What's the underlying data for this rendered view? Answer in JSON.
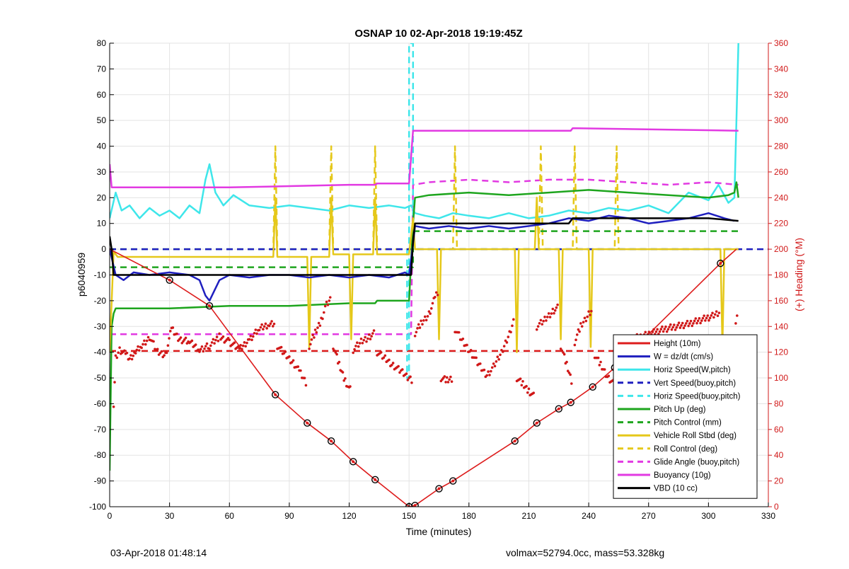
{
  "colors": {
    "height_red": "#dd1c1c",
    "w_blue": "#1f1fbf",
    "cyan": "#3ee6ea",
    "green": "#1ea51e",
    "yellow": "#e5c81a",
    "magenta": "#e23ae2",
    "black": "#000000",
    "right_axis_red": "#d01818",
    "grid": "#e3e3e3"
  },
  "chart_data": {
    "type": "line",
    "title": "OSNAP 10 02-Apr-2018 19:19:45Z",
    "xlabel": "Time (minutes)",
    "ylabel": "p6040959",
    "ylabel_right": "(+) Heading (°M)",
    "xlim": [
      0,
      330
    ],
    "ylim": [
      -100,
      80
    ],
    "ylim_right": [
      0,
      360
    ],
    "x_ticks": [
      0,
      30,
      60,
      90,
      120,
      150,
      180,
      210,
      240,
      270,
      300,
      330
    ],
    "y_ticks": [
      -100,
      -90,
      -80,
      -70,
      -60,
      -50,
      -40,
      -30,
      -20,
      -10,
      0,
      10,
      20,
      30,
      40,
      50,
      60,
      70,
      80
    ],
    "y_ticks_right": [
      0,
      20,
      40,
      60,
      80,
      100,
      120,
      140,
      160,
      180,
      200,
      220,
      240,
      260,
      280,
      300,
      320,
      340,
      360
    ],
    "grid": true,
    "legend_position": "bottom-right",
    "series": [
      {
        "name": "Height (10m)",
        "key": "height",
        "style": "solid-dots",
        "color": "#dd1c1c",
        "x": [
          0,
          30,
          50,
          83,
          99,
          111,
          122,
          133,
          150,
          153,
          165,
          172,
          203,
          214,
          225,
          231,
          242,
          253,
          306,
          314
        ],
        "values": [
          0,
          -12,
          -22,
          -56.5,
          -67.5,
          -74.5,
          -82.5,
          -89.5,
          -100,
          -99.5,
          -93,
          -90,
          -74.5,
          -67.5,
          -62,
          -59.5,
          -53.5,
          -46,
          -5.5,
          0
        ]
      },
      {
        "name": "W = dz/dt (cm/s)",
        "key": "w",
        "style": "solid",
        "color": "#1f1fbf",
        "x": [
          0,
          3,
          7,
          12,
          20,
          30,
          40,
          45,
          48,
          50,
          55,
          60,
          70,
          80,
          90,
          100,
          110,
          120,
          130,
          140,
          148,
          150,
          152,
          153,
          160,
          170,
          180,
          190,
          200,
          210,
          220,
          230,
          240,
          250,
          260,
          270,
          280,
          290,
          300,
          308,
          313
        ],
        "values": [
          0,
          -10,
          -12,
          -9,
          -10,
          -9,
          -10,
          -12,
          -18,
          -20,
          -12,
          -10,
          -11,
          -10,
          -10,
          -11,
          -10,
          -11,
          -10,
          -11,
          -9,
          -10,
          2,
          9,
          8,
          9,
          8,
          9,
          8,
          9,
          10,
          12,
          11,
          13,
          12,
          10,
          11,
          12,
          14,
          12,
          11
        ]
      },
      {
        "name": "Horiz Speed(W,pitch)",
        "key": "hspeed",
        "style": "solid",
        "color": "#3ee6ea",
        "x": [
          0,
          3,
          6,
          10,
          15,
          20,
          25,
          30,
          35,
          40,
          45,
          48,
          50,
          53,
          57,
          62,
          70,
          80,
          90,
          100,
          110,
          120,
          130,
          140,
          148,
          151,
          153,
          158,
          165,
          172,
          180,
          190,
          200,
          210,
          220,
          230,
          240,
          250,
          260,
          270,
          280,
          290,
          300,
          305,
          310,
          313,
          314,
          315
        ],
        "values": [
          12,
          22,
          15,
          17,
          12,
          16,
          13,
          15,
          12,
          17,
          14,
          27,
          33,
          22,
          17,
          21,
          17,
          16,
          17,
          16,
          15,
          17,
          16,
          17,
          16,
          17,
          14,
          13,
          12,
          14,
          13,
          12,
          14,
          12,
          13,
          15,
          14,
          16,
          15,
          17,
          14,
          22,
          19,
          25,
          18,
          20,
          50,
          80
        ]
      },
      {
        "name": "Vert Speed(buoy,pitch)",
        "key": "vspeed",
        "style": "dashed",
        "color": "#1f1fbf",
        "x": [
          0,
          330
        ],
        "values": [
          0,
          0
        ]
      },
      {
        "name": "Horiz Speed(buoy,pitch)",
        "key": "hspeedb",
        "style": "dashed",
        "color": "#3ee6ea",
        "x": [
          0,
          149,
          149,
          150,
          150,
          152,
          152,
          315
        ],
        "values": [
          0,
          0,
          -50,
          -50,
          80,
          80,
          0,
          0
        ]
      },
      {
        "name": "Pitch Up (deg)",
        "key": "pitch",
        "style": "solid",
        "color": "#1ea51e",
        "x": [
          0,
          1,
          2,
          3,
          10,
          30,
          60,
          90,
          120,
          133,
          134,
          150,
          152,
          153,
          160,
          180,
          200,
          220,
          240,
          260,
          280,
          300,
          310,
          313,
          314,
          315
        ],
        "values": [
          -86,
          -30,
          -25,
          -23,
          -23,
          -23,
          -22,
          -22,
          -21,
          -21,
          -20,
          -20,
          10,
          20,
          21,
          22,
          21,
          22,
          23,
          22,
          21,
          20,
          21,
          22,
          26,
          20
        ]
      },
      {
        "name": "Pitch Control (mm)",
        "key": "pitchctl",
        "style": "dashed",
        "color": "#1ea51e",
        "x": [
          0,
          152,
          152,
          315
        ],
        "values": [
          -7,
          -7,
          7,
          7
        ]
      },
      {
        "name": "Vehicle Roll Stbd (deg)",
        "key": "roll",
        "style": "solid",
        "color": "#e5c81a",
        "x": [
          0,
          2,
          4,
          30,
          60,
          82,
          83,
          84,
          99,
          100,
          101,
          110,
          111,
          112,
          120,
          121,
          122,
          132,
          133,
          134,
          150,
          152,
          153,
          164,
          165,
          166,
          190,
          203,
          204,
          205,
          213,
          214,
          215,
          225,
          226,
          227,
          240,
          241,
          242,
          253,
          306,
          307,
          308,
          314,
          315
        ],
        "values": [
          -40,
          -1,
          -3,
          -3,
          -3,
          -3,
          20,
          -3,
          -3,
          -38,
          -3,
          -3,
          20,
          -2,
          -2,
          -35,
          -2,
          -2,
          20,
          -2,
          -2,
          12,
          0,
          0,
          -35,
          0,
          0,
          0,
          -40,
          0,
          0,
          20,
          0,
          0,
          -35,
          0,
          0,
          -38,
          0,
          0,
          0,
          -38,
          0,
          0,
          0
        ]
      },
      {
        "name": "Roll Control (deg)",
        "key": "rollctl",
        "style": "dashed",
        "color": "#e5c81a",
        "x": [
          0,
          82,
          83,
          84,
          110,
          111,
          112,
          132,
          133,
          134,
          150,
          151,
          152,
          172,
          173,
          174,
          215,
          216,
          217,
          232,
          233,
          234,
          253,
          254,
          255,
          315
        ],
        "values": [
          0,
          0,
          40,
          0,
          0,
          40,
          0,
          0,
          40,
          0,
          0,
          0,
          0,
          0,
          40,
          0,
          0,
          40,
          0,
          0,
          40,
          0,
          0,
          40,
          0,
          0
        ]
      },
      {
        "name": "Glide Angle (buoy,pitch)",
        "key": "glide",
        "style": "dashed",
        "color": "#e23ae2",
        "x": [
          0,
          60,
          100,
          150,
          151,
          152,
          160,
          180,
          200,
          220,
          240,
          260,
          280,
          300,
          315
        ],
        "values": [
          -33,
          -33,
          -33,
          -33,
          -33,
          25,
          26,
          27,
          26,
          27,
          27,
          26,
          25,
          26,
          25
        ]
      },
      {
        "name": "Buoyancy (10g)",
        "key": "buoy",
        "style": "solid",
        "color": "#e23ae2",
        "x": [
          0,
          1,
          2,
          3,
          30,
          60,
          90,
          120,
          133,
          134,
          150,
          152,
          153,
          231,
          232,
          315
        ],
        "values": [
          33,
          24,
          24,
          24,
          24,
          24,
          24.5,
          25,
          25,
          25.5,
          25.5,
          46,
          46,
          46,
          47,
          46
        ]
      },
      {
        "name": "VBD (10 cc)",
        "key": "vbd",
        "style": "solid",
        "color": "#000000",
        "x": [
          0,
          1,
          2,
          3,
          150,
          151,
          152,
          153,
          160,
          180,
          200,
          230,
          231,
          232,
          260,
          300,
          315
        ],
        "values": [
          5,
          0,
          -10,
          -10,
          -10,
          -10,
          3,
          10,
          10,
          10,
          10,
          10,
          11,
          12,
          12,
          12,
          11
        ]
      }
    ],
    "heading_target": 121,
    "heading_right_axis": {
      "name": "Heading (°M)",
      "key": "heading",
      "color": "#d01818",
      "segments": [
        {
          "x": [
            2,
            3,
            5,
            8,
            10,
            13,
            16,
            20,
            24,
            28,
            31,
            35,
            40,
            45,
            50,
            55,
            60,
            65,
            70,
            75,
            80,
            83
          ],
          "values": [
            80,
            115,
            122,
            118,
            115,
            120,
            125,
            132,
            120,
            118,
            138,
            130,
            128,
            122,
            125,
            132,
            128,
            122,
            130,
            138,
            142,
            143
          ]
        },
        {
          "x": [
            84,
            88,
            92,
            95,
            97,
            99
          ],
          "values": [
            125,
            118,
            112,
            105,
            100,
            95
          ]
        },
        {
          "x": [
            100,
            103,
            106,
            108,
            110,
            111
          ],
          "values": [
            125,
            135,
            145,
            155,
            160,
            162
          ]
        },
        {
          "x": [
            112,
            115,
            118,
            120,
            121
          ],
          "values": [
            125,
            110,
            98,
            92,
            90
          ]
        },
        {
          "x": [
            122,
            126,
            130,
            133
          ],
          "values": [
            122,
            128,
            132,
            135
          ]
        },
        {
          "x": [
            134,
            138,
            142,
            146,
            150,
            152
          ],
          "values": [
            120,
            115,
            110,
            105,
            100,
            98
          ]
        },
        {
          "x": [
            153,
            156,
            160,
            163,
            165
          ],
          "values": [
            135,
            142,
            150,
            162,
            168
          ]
        },
        {
          "x": [
            166,
            169,
            172
          ],
          "values": [
            100,
            98,
            100
          ]
        },
        {
          "x": [
            173,
            177,
            181,
            185,
            189,
            193,
            197,
            201,
            203
          ],
          "values": [
            138,
            128,
            120,
            110,
            102,
            110,
            122,
            138,
            148
          ]
        },
        {
          "x": [
            204,
            207,
            210,
            213
          ],
          "values": [
            100,
            95,
            90,
            85
          ]
        },
        {
          "x": [
            214,
            218,
            222,
            225
          ],
          "values": [
            140,
            145,
            152,
            155
          ]
        },
        {
          "x": [
            226,
            229,
            232
          ],
          "values": [
            125,
            110,
            95
          ]
        },
        {
          "x": [
            233,
            236,
            240,
            242
          ],
          "values": [
            128,
            140,
            150,
            154
          ]
        },
        {
          "x": [
            243,
            246,
            250,
            253
          ],
          "values": [
            118,
            110,
            100,
            95
          ]
        },
        {
          "x": [
            254,
            260,
            266,
            272,
            278,
            284,
            290,
            296,
            302,
            306
          ],
          "values": [
            128,
            130,
            132,
            135,
            138,
            140,
            142,
            145,
            148,
            152
          ]
        },
        {
          "x": [
            307,
            309,
            311,
            313,
            315
          ],
          "values": [
            128,
            122,
            118,
            130,
            160
          ]
        }
      ]
    }
  },
  "footer": {
    "left_text": "03-Apr-2018 01:48:14",
    "right_text": "volmax=52794.0cc, mass=53.328kg"
  }
}
